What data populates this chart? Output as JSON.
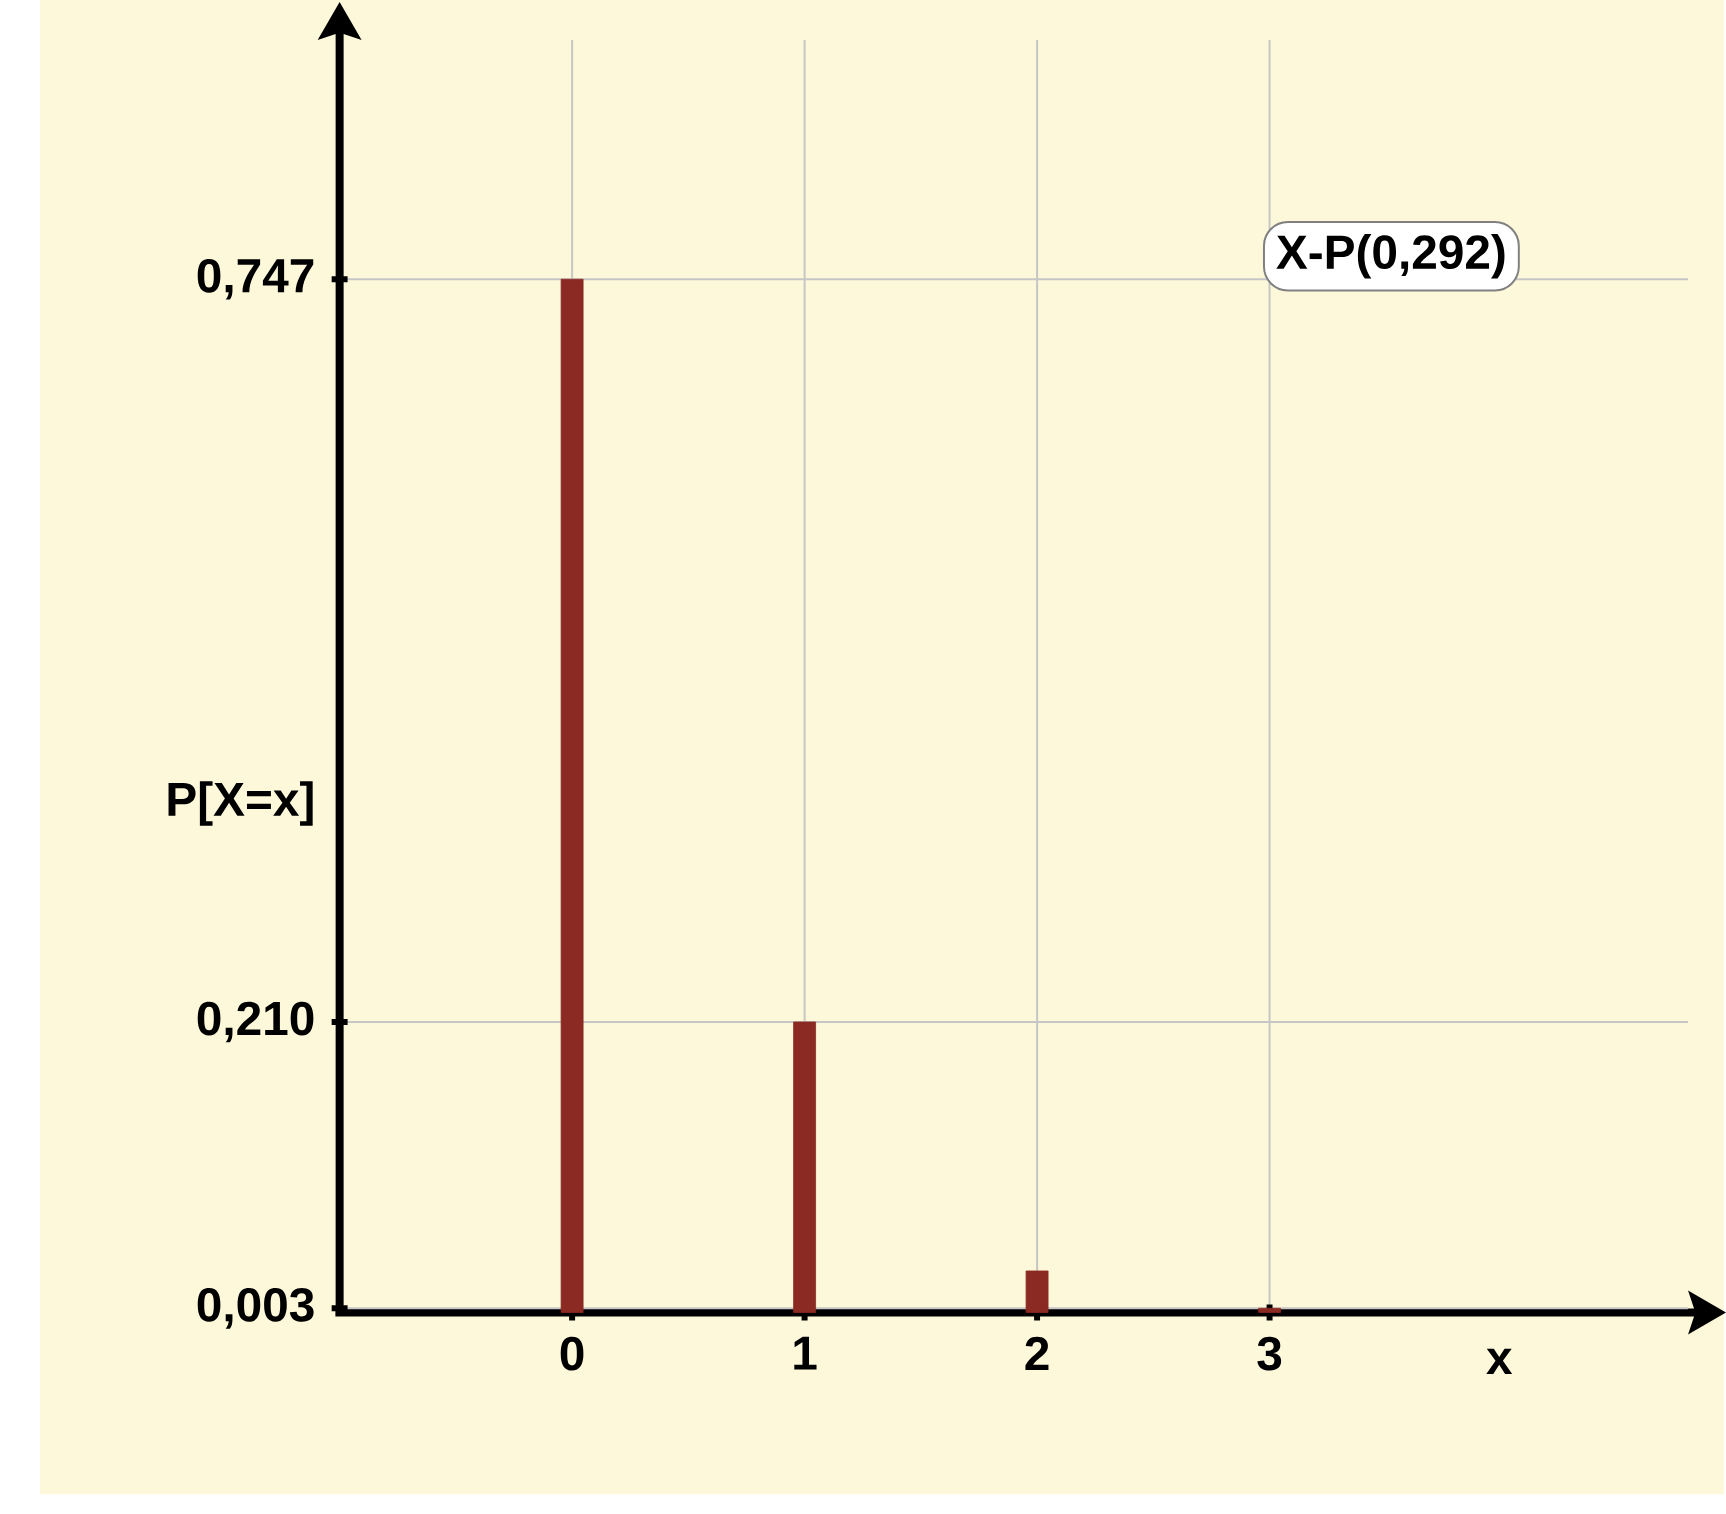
{
  "chart_data": {
    "type": "bar",
    "categories": [
      "0",
      "1",
      "2",
      "3"
    ],
    "values": [
      0.747,
      0.21,
      0.03,
      0.003
    ],
    "color": "#8b2a22",
    "xlabel": "x",
    "ylabel": "P[X=x]",
    "ylim": [
      0,
      0.92
    ],
    "yticks": [
      {
        "value": 0.747,
        "label": "0,747"
      },
      {
        "value": 0.21,
        "label": "0,210"
      },
      {
        "value": 0.003,
        "label": "0,003"
      }
    ],
    "grid": true,
    "annotations": [
      "X-P(0,292)"
    ]
  }
}
